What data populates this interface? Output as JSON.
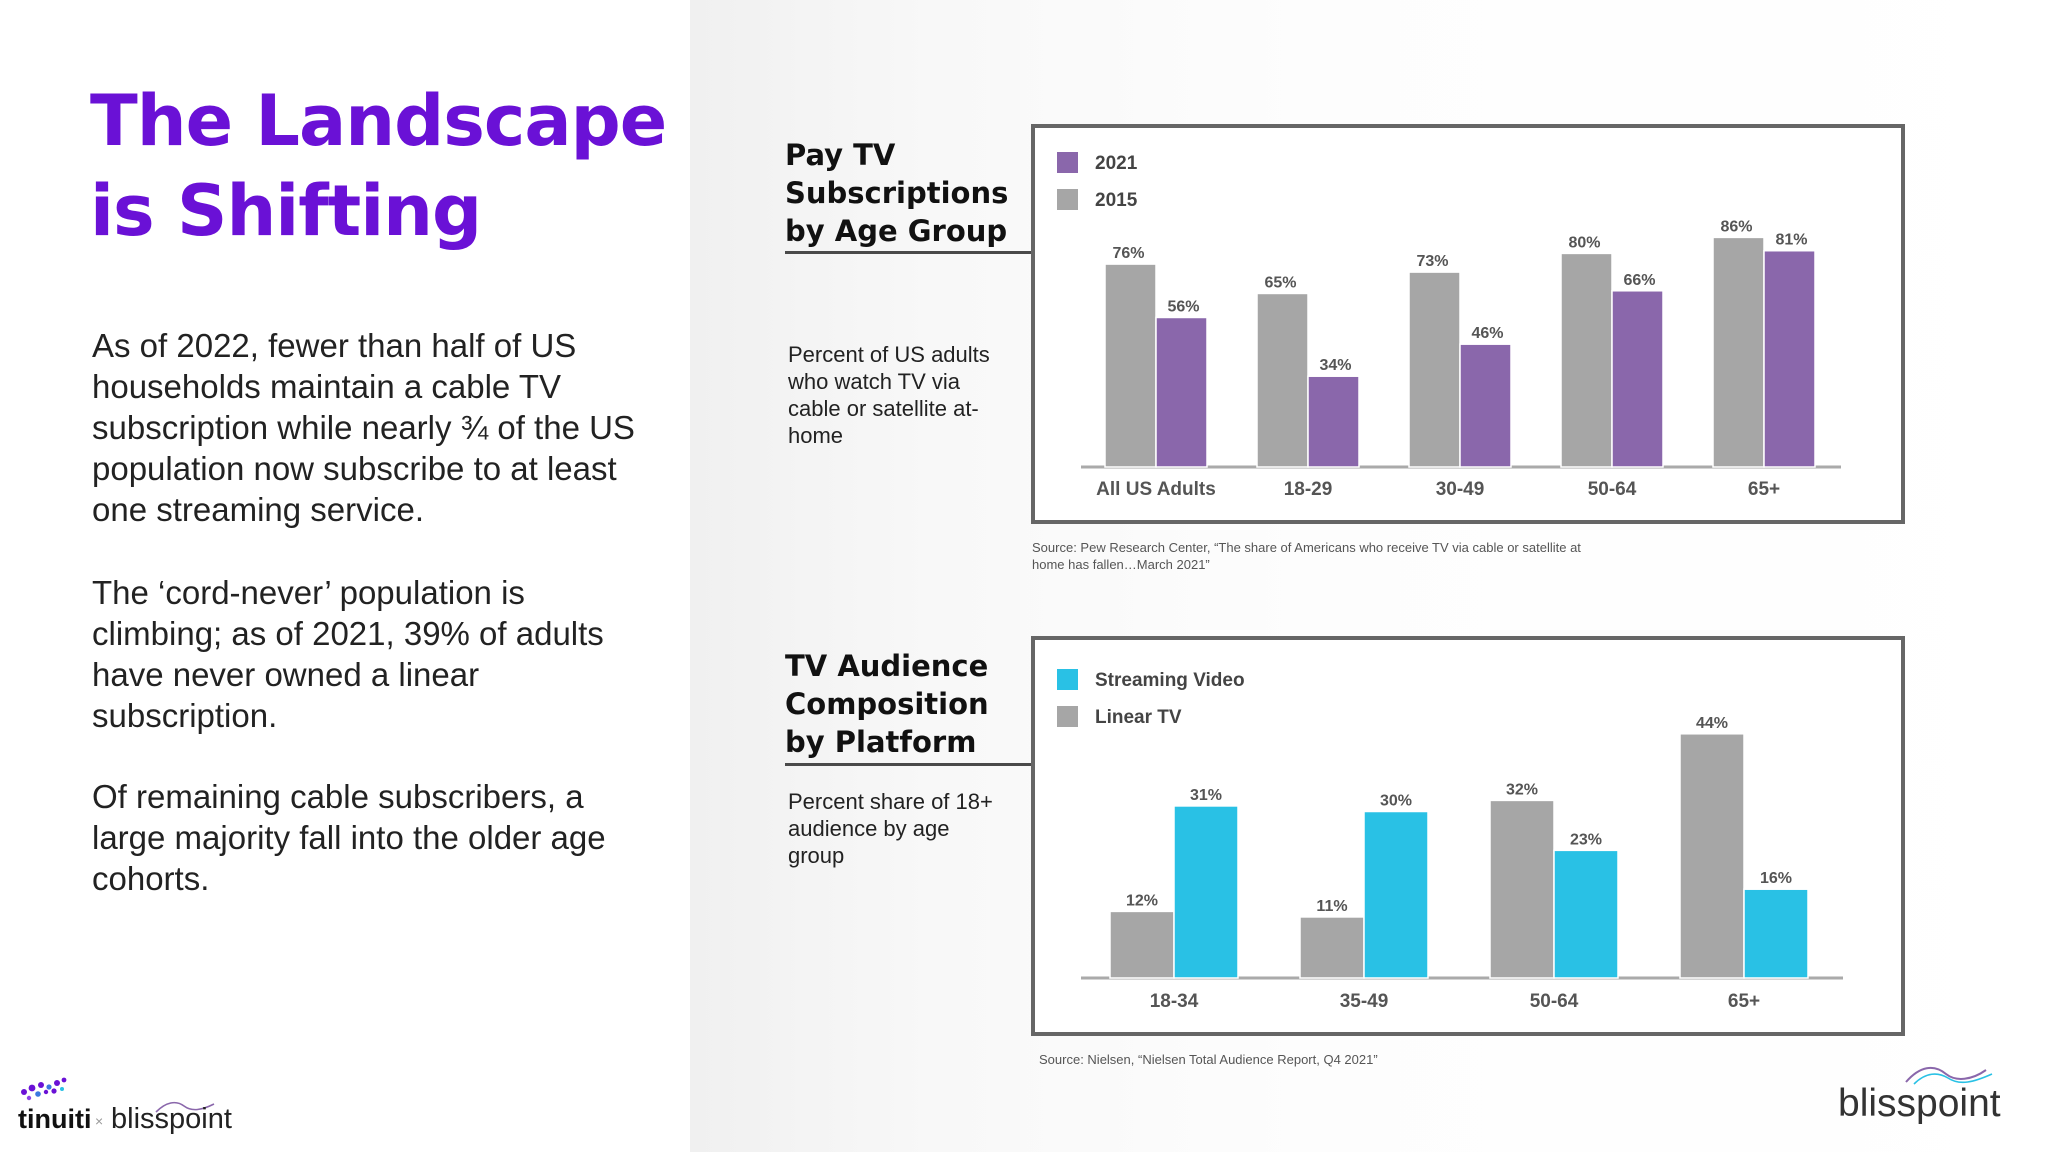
{
  "slide": {
    "title_line1": "The Landscape",
    "title_line2": "is Shifting",
    "paragraphs": [
      "As of 2022, fewer than half of US households maintain a cable TV subscription while nearly ¾ of the US population now subscribe to at least one streaming service.",
      "The ‘cord-never’ population is climbing; as of 2021, 39% of adults have never owned a linear subscription.",
      "Of remaining cable subscribers, a large majority fall into the older age cohorts."
    ]
  },
  "section1": {
    "title": "Pay TV Subscriptions by Age Group",
    "subtitle": "Percent of US adults who watch TV via cable or satellite at-home",
    "source": "Source: Pew Research Center, “The share of Americans who receive TV via cable or satellite at home has fallen…March 2021”"
  },
  "section2": {
    "title": "TV Audience Composition by Platform",
    "subtitle": "Percent share of 18+ audience by age group",
    "source": "Source: Nielsen, “Nielsen Total Audience Report, Q4 2021”"
  },
  "logos": {
    "tinuiti": "tinuiti",
    "separator": "×",
    "blisspoint": "blisspoint"
  },
  "chart_data": [
    {
      "type": "bar",
      "title": "Pay TV Subscriptions by Age Group",
      "categories": [
        "All US Adults",
        "18-29",
        "30-49",
        "50-64",
        "65+"
      ],
      "series": [
        {
          "name": "2015",
          "values": [
            76,
            65,
            73,
            80,
            86
          ],
          "labels": [
            "76%",
            "65%",
            "73%",
            "80%",
            "86%"
          ],
          "color": "#a6a6a6"
        },
        {
          "name": "2021",
          "values": [
            56,
            34,
            46,
            66,
            81
          ],
          "labels": [
            "56%",
            "34%",
            "46%",
            "66%",
            "81%"
          ],
          "color": "#8a67ab"
        }
      ],
      "legend_order": [
        "2021",
        "2015"
      ],
      "legend_position": "top-left",
      "ylim": [
        0,
        100
      ],
      "grid": false
    },
    {
      "type": "bar",
      "title": "TV Audience Composition by Platform",
      "categories": [
        "18-34",
        "35-49",
        "50-64",
        "65+"
      ],
      "series": [
        {
          "name": "Linear TV",
          "values": [
            12,
            11,
            32,
            44
          ],
          "labels": [
            "12%",
            "11%",
            "32%",
            "44%"
          ],
          "color": "#a6a6a6"
        },
        {
          "name": "Streaming Video",
          "values": [
            31,
            30,
            23,
            16
          ],
          "labels": [
            "31%",
            "30%",
            "23%",
            "16%"
          ],
          "color": "#29c1e5"
        }
      ],
      "legend_order": [
        "Streaming Video",
        "Linear TV"
      ],
      "legend_position": "top-left",
      "ylim": [
        0,
        50
      ],
      "grid": false
    }
  ]
}
